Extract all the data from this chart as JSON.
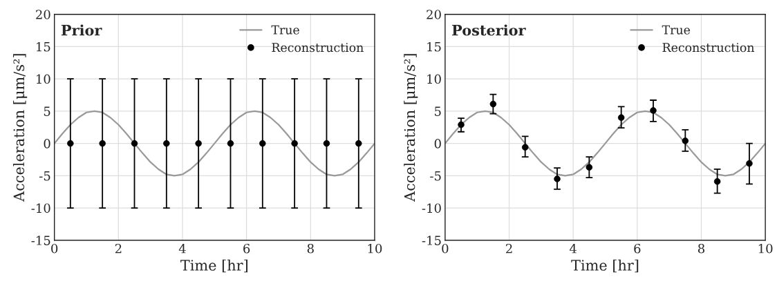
{
  "chart_data": [
    {
      "type": "scatter",
      "title": "Prior",
      "xlabel": "Time [hr]",
      "ylabel": "Acceleration [μm/s²]",
      "xlim": [
        0,
        10
      ],
      "ylim": [
        -15,
        20
      ],
      "xticks": [
        0,
        2,
        4,
        6,
        8,
        10
      ],
      "yticks": [
        -15,
        -10,
        -5,
        0,
        5,
        10,
        15,
        20
      ],
      "grid": true,
      "legend": "top right",
      "series": [
        {
          "name": "True",
          "type": "line",
          "color": "#999999",
          "marker": "none",
          "x": [
            0,
            0.25,
            0.5,
            0.75,
            1,
            1.25,
            1.5,
            1.75,
            2,
            2.25,
            2.5,
            2.75,
            3,
            3.25,
            3.5,
            3.75,
            4,
            4.25,
            4.5,
            4.75,
            5,
            5.25,
            5.5,
            5.75,
            6,
            6.25,
            6.5,
            6.75,
            7,
            7.25,
            7.5,
            7.75,
            8,
            8.25,
            8.5,
            8.75,
            9,
            9.25,
            9.5,
            9.75,
            10
          ],
          "values": [
            0,
            1.5,
            2.9,
            4.0,
            4.8,
            5,
            4.8,
            4.0,
            2.9,
            1.5,
            0,
            -1.5,
            -2.9,
            -4.0,
            -4.8,
            -5,
            -4.8,
            -4.0,
            -2.9,
            -1.5,
            0,
            1.5,
            2.9,
            4.0,
            4.8,
            5,
            4.8,
            4.0,
            2.9,
            1.5,
            0,
            -1.5,
            -2.9,
            -4.0,
            -4.8,
            -5,
            -4.8,
            -4.0,
            -2.9,
            -1.5,
            0
          ]
        },
        {
          "name": "Reconstruction",
          "color": "#000000",
          "marker": "circle",
          "x": [
            0.5,
            1.5,
            2.5,
            3.5,
            4.5,
            5.5,
            6.5,
            7.5,
            8.5,
            9.5
          ],
          "values": [
            0,
            0,
            0,
            0,
            0,
            0,
            0,
            0,
            0,
            0
          ],
          "errors": [
            10,
            10,
            10,
            10,
            10,
            10,
            10,
            10,
            10,
            10
          ]
        }
      ]
    },
    {
      "type": "scatter",
      "title": "Posterior",
      "xlabel": "Time [hr]",
      "ylabel": "Acceleration [μm/s²]",
      "xlim": [
        0,
        10
      ],
      "ylim": [
        -15,
        20
      ],
      "xticks": [
        0,
        2,
        4,
        6,
        8,
        10
      ],
      "yticks": [
        -15,
        -10,
        -5,
        0,
        5,
        10,
        15,
        20
      ],
      "grid": true,
      "legend": "top right",
      "series": [
        {
          "name": "True",
          "type": "line",
          "color": "#999999",
          "marker": "none",
          "x": [
            0,
            0.25,
            0.5,
            0.75,
            1,
            1.25,
            1.5,
            1.75,
            2,
            2.25,
            2.5,
            2.75,
            3,
            3.25,
            3.5,
            3.75,
            4,
            4.25,
            4.5,
            4.75,
            5,
            5.25,
            5.5,
            5.75,
            6,
            6.25,
            6.5,
            6.75,
            7,
            7.25,
            7.5,
            7.75,
            8,
            8.25,
            8.5,
            8.75,
            9,
            9.25,
            9.5,
            9.75,
            10
          ],
          "values": [
            0,
            1.5,
            2.9,
            4.0,
            4.8,
            5,
            4.8,
            4.0,
            2.9,
            1.5,
            0,
            -1.5,
            -2.9,
            -4.0,
            -4.8,
            -5,
            -4.8,
            -4.0,
            -2.9,
            -1.5,
            0,
            1.5,
            2.9,
            4.0,
            4.8,
            5,
            4.8,
            4.0,
            2.9,
            1.5,
            0,
            -1.5,
            -2.9,
            -4.0,
            -4.8,
            -5,
            -4.8,
            -4.0,
            -2.9,
            -1.5,
            0
          ]
        },
        {
          "name": "Reconstruction",
          "color": "#000000",
          "marker": "circle",
          "x": [
            0.5,
            1.5,
            2.5,
            3.5,
            4.5,
            5.5,
            6.5,
            7.5,
            8.5,
            9.5
          ],
          "values": [
            2.9,
            6.1,
            -0.6,
            -5.5,
            -3.7,
            4.0,
            5.1,
            0.4,
            -5.9,
            -3.1
          ],
          "errors": [
            [
              1.8,
              3.9
            ],
            [
              4.6,
              7.6
            ],
            [
              -2.1,
              1.1
            ],
            [
              -7.1,
              -3.8
            ],
            [
              -5.3,
              -2.1
            ],
            [
              2.4,
              5.7
            ],
            [
              3.4,
              6.7
            ],
            [
              -1.2,
              2.1
            ],
            [
              -7.7,
              -4.0
            ],
            [
              -6.3,
              0.0
            ]
          ]
        }
      ]
    }
  ]
}
